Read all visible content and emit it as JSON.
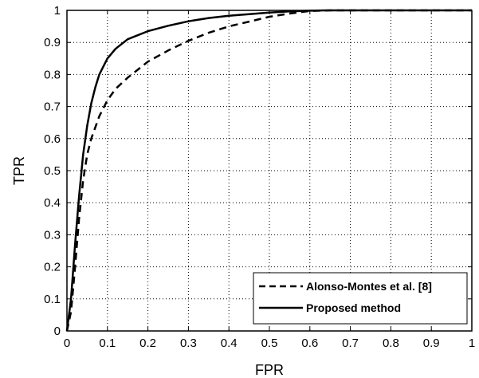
{
  "chart_data": {
    "type": "line",
    "title": "",
    "xlabel": "FPR",
    "ylabel": "TPR",
    "xlim": [
      0,
      1
    ],
    "ylim": [
      0,
      1
    ],
    "xticks": [
      "0",
      "0.1",
      "0.2",
      "0.3",
      "0.4",
      "0.5",
      "0.6",
      "0.7",
      "0.8",
      "0.9",
      "1"
    ],
    "yticks": [
      "0",
      "0.1",
      "0.2",
      "0.3",
      "0.4",
      "0.5",
      "0.6",
      "0.7",
      "0.8",
      "0.9",
      "1"
    ],
    "grid": true,
    "legend_position": "bottom-right",
    "series": [
      {
        "name": "Alonso-Montes et al. [8]",
        "style": "dashed",
        "color": "#000000",
        "x": [
          0,
          0.01,
          0.02,
          0.03,
          0.04,
          0.05,
          0.06,
          0.08,
          0.1,
          0.12,
          0.15,
          0.2,
          0.25,
          0.3,
          0.35,
          0.4,
          0.45,
          0.5,
          0.55,
          0.6,
          0.65,
          1.0
        ],
        "y": [
          0,
          0.06,
          0.2,
          0.35,
          0.47,
          0.55,
          0.6,
          0.67,
          0.72,
          0.755,
          0.79,
          0.84,
          0.875,
          0.905,
          0.93,
          0.95,
          0.965,
          0.98,
          0.99,
          0.998,
          1.0,
          1.0
        ]
      },
      {
        "name": "Proposed method",
        "style": "solid",
        "color": "#000000",
        "x": [
          0,
          0.01,
          0.02,
          0.03,
          0.04,
          0.05,
          0.06,
          0.07,
          0.08,
          0.1,
          0.12,
          0.15,
          0.2,
          0.25,
          0.3,
          0.35,
          0.4,
          0.5,
          0.55,
          0.6,
          0.64,
          1.0
        ],
        "y": [
          0,
          0.1,
          0.27,
          0.42,
          0.55,
          0.64,
          0.71,
          0.76,
          0.8,
          0.85,
          0.88,
          0.91,
          0.935,
          0.952,
          0.966,
          0.976,
          0.983,
          0.993,
          0.997,
          0.999,
          1.0,
          1.0
        ]
      }
    ]
  }
}
